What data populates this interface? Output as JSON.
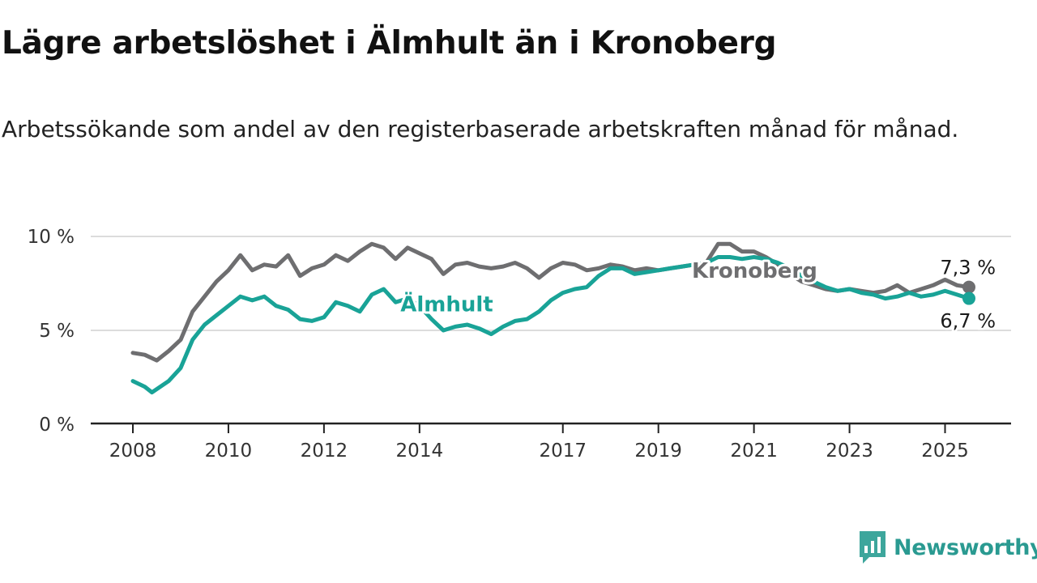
{
  "header": {
    "title": "Lägre arbetslöshet i Älmhult än i Kronoberg",
    "subtitle": "Arbetssökande som andel av den registerbaserade arbetskraften månad för månad."
  },
  "logo": {
    "text": "Newsworthy",
    "icon": "chart-bubble-icon",
    "color": "#2a9a91"
  },
  "chart_data": {
    "type": "line",
    "title": "Lägre arbetslöshet i Älmhult än i Kronoberg",
    "subtitle": "Arbetssökande som andel av den registerbaserade arbetskraften månad för månad.",
    "xlabel": "",
    "ylabel": "",
    "ylim": [
      0,
      10
    ],
    "y_ticks": [
      0,
      5,
      10
    ],
    "y_tick_labels": [
      "0 %",
      "5 %",
      "10 %"
    ],
    "x_ticks": [
      2008,
      2010,
      2012,
      2014,
      2017,
      2019,
      2021,
      2023,
      2025
    ],
    "x_tick_labels": [
      "2008",
      "2010",
      "2012",
      "2014",
      "2017",
      "2019",
      "2021",
      "2023",
      "2025"
    ],
    "grid": "horizontal",
    "legend": "direct labels on lines",
    "series": [
      {
        "name": "Kronoberg",
        "color": "#6e6e70",
        "end_label": "7,3 %",
        "points": [
          [
            2008.0,
            3.8
          ],
          [
            2008.25,
            3.7
          ],
          [
            2008.5,
            3.4
          ],
          [
            2008.75,
            3.9
          ],
          [
            2009.0,
            4.5
          ],
          [
            2009.25,
            6.0
          ],
          [
            2009.5,
            6.8
          ],
          [
            2009.75,
            7.6
          ],
          [
            2010.0,
            8.2
          ],
          [
            2010.25,
            9.0
          ],
          [
            2010.5,
            8.2
          ],
          [
            2010.75,
            8.5
          ],
          [
            2011.0,
            8.4
          ],
          [
            2011.25,
            9.0
          ],
          [
            2011.5,
            7.9
          ],
          [
            2011.75,
            8.3
          ],
          [
            2012.0,
            8.5
          ],
          [
            2012.25,
            9.0
          ],
          [
            2012.5,
            8.7
          ],
          [
            2012.75,
            9.2
          ],
          [
            2013.0,
            9.6
          ],
          [
            2013.25,
            9.4
          ],
          [
            2013.5,
            8.8
          ],
          [
            2013.75,
            9.4
          ],
          [
            2014.0,
            9.1
          ],
          [
            2014.25,
            8.8
          ],
          [
            2014.5,
            8.0
          ],
          [
            2014.75,
            8.5
          ],
          [
            2015.0,
            8.6
          ],
          [
            2015.25,
            8.4
          ],
          [
            2015.5,
            8.3
          ],
          [
            2015.75,
            8.4
          ],
          [
            2016.0,
            8.6
          ],
          [
            2016.25,
            8.3
          ],
          [
            2016.5,
            7.8
          ],
          [
            2016.75,
            8.3
          ],
          [
            2017.0,
            8.6
          ],
          [
            2017.25,
            8.5
          ],
          [
            2017.5,
            8.2
          ],
          [
            2017.75,
            8.3
          ],
          [
            2018.0,
            8.5
          ],
          [
            2018.25,
            8.4
          ],
          [
            2018.5,
            8.2
          ],
          [
            2018.75,
            8.3
          ],
          [
            2019.0,
            8.2
          ],
          [
            2019.25,
            8.3
          ],
          [
            2019.5,
            8.4
          ],
          [
            2019.75,
            8.5
          ],
          [
            2020.0,
            8.6
          ],
          [
            2020.25,
            9.6
          ],
          [
            2020.5,
            9.6
          ],
          [
            2020.75,
            9.2
          ],
          [
            2021.0,
            9.2
          ],
          [
            2021.25,
            8.9
          ],
          [
            2021.5,
            8.5
          ],
          [
            2021.75,
            8.0
          ],
          [
            2022.0,
            7.6
          ],
          [
            2022.25,
            7.4
          ],
          [
            2022.5,
            7.2
          ],
          [
            2022.75,
            7.1
          ],
          [
            2023.0,
            7.2
          ],
          [
            2023.25,
            7.1
          ],
          [
            2023.5,
            7.0
          ],
          [
            2023.75,
            7.1
          ],
          [
            2024.0,
            7.4
          ],
          [
            2024.25,
            7.0
          ],
          [
            2024.5,
            7.2
          ],
          [
            2024.75,
            7.4
          ],
          [
            2025.0,
            7.7
          ],
          [
            2025.25,
            7.4
          ],
          [
            2025.5,
            7.3
          ]
        ]
      },
      {
        "name": "Älmhult",
        "color": "#19a397",
        "end_label": "6,7 %",
        "points": [
          [
            2008.0,
            2.3
          ],
          [
            2008.25,
            2.0
          ],
          [
            2008.4,
            1.7
          ],
          [
            2008.75,
            2.3
          ],
          [
            2009.0,
            3.0
          ],
          [
            2009.25,
            4.5
          ],
          [
            2009.5,
            5.3
          ],
          [
            2009.75,
            5.8
          ],
          [
            2010.0,
            6.3
          ],
          [
            2010.25,
            6.8
          ],
          [
            2010.5,
            6.6
          ],
          [
            2010.75,
            6.8
          ],
          [
            2011.0,
            6.3
          ],
          [
            2011.25,
            6.1
          ],
          [
            2011.5,
            5.6
          ],
          [
            2011.75,
            5.5
          ],
          [
            2012.0,
            5.7
          ],
          [
            2012.25,
            6.5
          ],
          [
            2012.5,
            6.3
          ],
          [
            2012.75,
            6.0
          ],
          [
            2013.0,
            6.9
          ],
          [
            2013.25,
            7.2
          ],
          [
            2013.5,
            6.5
          ],
          [
            2013.75,
            6.7
          ],
          [
            2014.0,
            6.3
          ],
          [
            2014.25,
            5.6
          ],
          [
            2014.5,
            5.0
          ],
          [
            2014.75,
            5.2
          ],
          [
            2015.0,
            5.3
          ],
          [
            2015.25,
            5.1
          ],
          [
            2015.5,
            4.8
          ],
          [
            2015.75,
            5.2
          ],
          [
            2016.0,
            5.5
          ],
          [
            2016.25,
            5.6
          ],
          [
            2016.5,
            6.0
          ],
          [
            2016.75,
            6.6
          ],
          [
            2017.0,
            7.0
          ],
          [
            2017.25,
            7.2
          ],
          [
            2017.5,
            7.3
          ],
          [
            2017.75,
            7.9
          ],
          [
            2018.0,
            8.3
          ],
          [
            2018.25,
            8.3
          ],
          [
            2018.5,
            8.0
          ],
          [
            2018.75,
            8.1
          ],
          [
            2019.0,
            8.2
          ],
          [
            2019.25,
            8.3
          ],
          [
            2019.5,
            8.4
          ],
          [
            2019.75,
            8.5
          ],
          [
            2020.0,
            8.6
          ],
          [
            2020.25,
            8.9
          ],
          [
            2020.5,
            8.9
          ],
          [
            2020.75,
            8.8
          ],
          [
            2021.0,
            8.9
          ],
          [
            2021.25,
            8.8
          ],
          [
            2021.5,
            8.6
          ],
          [
            2021.75,
            8.3
          ],
          [
            2022.0,
            7.9
          ],
          [
            2022.25,
            7.6
          ],
          [
            2022.5,
            7.3
          ],
          [
            2022.75,
            7.1
          ],
          [
            2023.0,
            7.2
          ],
          [
            2023.25,
            7.0
          ],
          [
            2023.5,
            6.9
          ],
          [
            2023.75,
            6.7
          ],
          [
            2024.0,
            6.8
          ],
          [
            2024.25,
            7.0
          ],
          [
            2024.5,
            6.8
          ],
          [
            2024.75,
            6.9
          ],
          [
            2025.0,
            7.1
          ],
          [
            2025.25,
            6.9
          ],
          [
            2025.5,
            6.7
          ]
        ]
      }
    ],
    "annotations": [
      {
        "text": "Kronoberg",
        "series": "Kronoberg",
        "x": 2019.7,
        "y": 8.2
      },
      {
        "text": "Älmhult",
        "series": "Älmhult",
        "x": 2013.6,
        "y": 6.4
      }
    ]
  }
}
